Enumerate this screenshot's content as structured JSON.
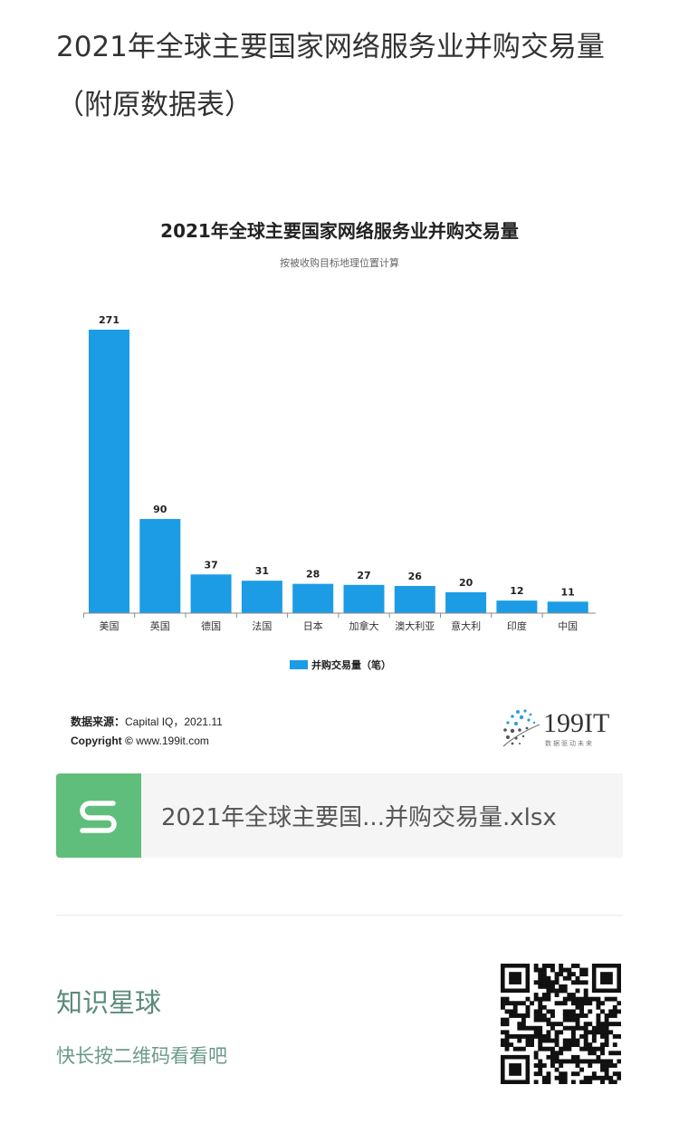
{
  "page_title": "2021年全球主要国家网络服务业并购交易量（附原数据表）",
  "chart_data": {
    "type": "bar",
    "title": "2021年全球主要国家网络服务业并购交易量",
    "subtitle": "按被收购目标地理位置计算",
    "categories": [
      "美国",
      "英国",
      "德国",
      "法国",
      "日本",
      "加拿大",
      "澳大利亚",
      "意大利",
      "印度",
      "中国"
    ],
    "series": [
      {
        "name": "并购交易量（笔）",
        "values": [
          271,
          90,
          37,
          31,
          28,
          27,
          26,
          20,
          12,
          11
        ]
      }
    ],
    "ylim": [
      0,
      271
    ],
    "bar_color": "#1b9ce5",
    "legend": "bottom-center",
    "grid": false
  },
  "source": {
    "label": "数据来源：",
    "text": "Capital IQ，2021.11",
    "copyright_label": "Copyright ©",
    "copyright_url": "www.199it.com"
  },
  "logo": {
    "name": "199IT",
    "tagline": "数据驱动未来"
  },
  "file": {
    "icon": "spreadsheet-s-icon",
    "name": "2021年全球主要国...并购交易量.xlsx",
    "color": "#5fbe7c"
  },
  "promo": {
    "title": "知识星球",
    "subtitle": "快长按二维码看看吧"
  }
}
